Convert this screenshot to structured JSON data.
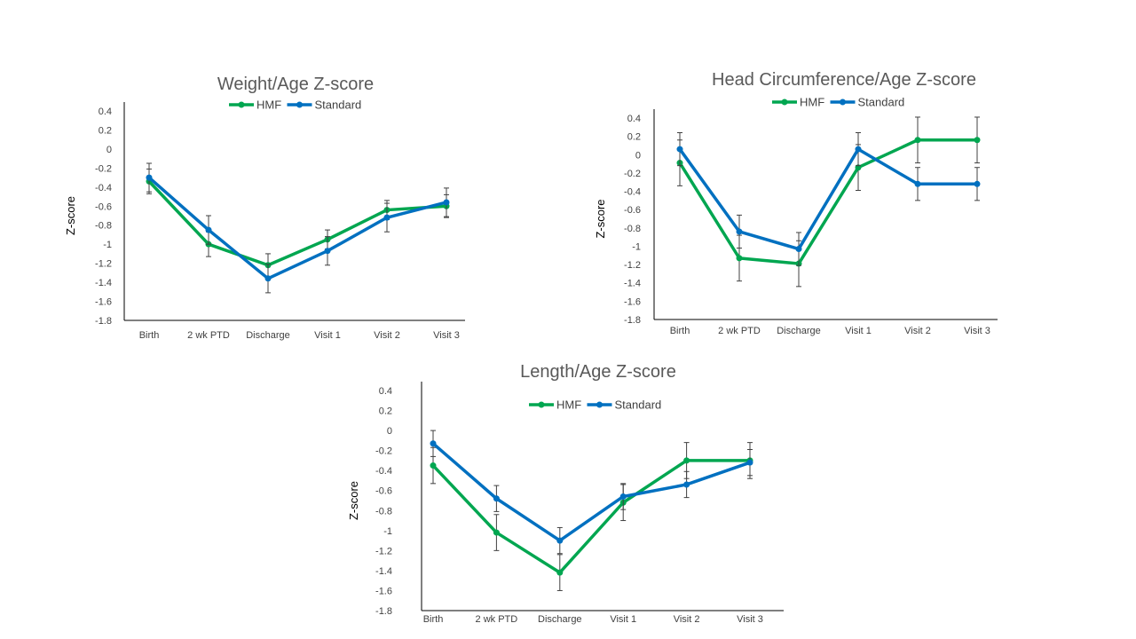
{
  "colors": {
    "hmf": "#00a650",
    "standard": "#0070c0"
  },
  "chart_data": [
    {
      "type": "line",
      "title": "Weight/Age Z-score",
      "ylabel": "Z-score",
      "categories": [
        "Birth",
        "2 wk PTD",
        "Discharge",
        "Visit 1",
        "Visit 2",
        "Visit 3"
      ],
      "yticks": [
        "0.4",
        "0.2",
        "0",
        "-0.2",
        "-0.4",
        "-0.6",
        "-0.8",
        "-1",
        "-1.2",
        "-1.4",
        "-1.6",
        "-1.8"
      ],
      "ylim": [
        -1.8,
        0.4
      ],
      "legend": [
        "HMF",
        "Standard"
      ],
      "series": [
        {
          "name": "HMF",
          "values": [
            -0.34,
            -1.0,
            -1.22,
            -0.95,
            -0.64,
            -0.6
          ],
          "err": [
            0.13,
            0.13,
            0.12,
            0.1,
            0.1,
            0.12
          ]
        },
        {
          "name": "Standard",
          "values": [
            -0.3,
            -0.85,
            -1.36,
            -1.07,
            -0.72,
            -0.56
          ],
          "err": [
            0.15,
            0.15,
            0.15,
            0.15,
            0.15,
            0.15
          ]
        }
      ]
    },
    {
      "type": "line",
      "title": "Head Circumference/Age Z-score",
      "ylabel": "Z-score",
      "categories": [
        "Birth",
        "2 wk PTD",
        "Discharge",
        "Visit 1",
        "Visit 2",
        "Visit 3"
      ],
      "yticks": [
        "0.4",
        "0.2",
        "0",
        "-0.2",
        "-0.4",
        "-0.6",
        "-0.8",
        "-1",
        "-1.2",
        "-1.4",
        "-1.6",
        "-1.8"
      ],
      "ylim": [
        -1.8,
        0.4
      ],
      "legend": [
        "HMF",
        "Standard"
      ],
      "series": [
        {
          "name": "HMF",
          "values": [
            -0.09,
            -1.13,
            -1.19,
            -0.14,
            0.16,
            0.16
          ],
          "err": [
            0.25,
            0.25,
            0.25,
            0.25,
            0.25,
            0.25
          ]
        },
        {
          "name": "Standard",
          "values": [
            0.06,
            -0.84,
            -1.03,
            0.06,
            -0.32,
            -0.32
          ],
          "err": [
            0.18,
            0.18,
            0.18,
            0.18,
            0.18,
            0.18
          ]
        }
      ]
    },
    {
      "type": "line",
      "title": "Length/Age Z-score",
      "ylabel": "Z-score",
      "categories": [
        "Birth",
        "2 wk PTD",
        "Discharge",
        "Visit 1",
        "Visit 2",
        "Visit 3"
      ],
      "yticks": [
        "0.4",
        "0.2",
        "0",
        "-0.2",
        "-0.4",
        "-0.6",
        "-0.8",
        "-1",
        "-1.2",
        "-1.4",
        "-1.6",
        "-1.8"
      ],
      "ylim": [
        -1.8,
        0.4
      ],
      "legend": [
        "HMF",
        "Standard"
      ],
      "series": [
        {
          "name": "HMF",
          "values": [
            -0.35,
            -1.02,
            -1.42,
            -0.72,
            -0.3,
            -0.3
          ],
          "err": [
            0.18,
            0.18,
            0.18,
            0.18,
            0.18,
            0.18
          ]
        },
        {
          "name": "Standard",
          "values": [
            -0.13,
            -0.68,
            -1.1,
            -0.66,
            -0.54,
            -0.32
          ],
          "err": [
            0.13,
            0.13,
            0.13,
            0.13,
            0.13,
            0.13
          ]
        }
      ]
    }
  ]
}
